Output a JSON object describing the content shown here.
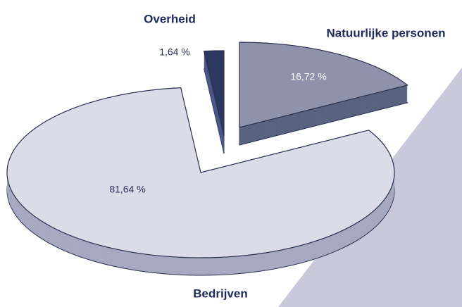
{
  "chart_data": {
    "type": "pie",
    "categories": [
      "Natuurlijke personen",
      "Bedrijven",
      "Overheid"
    ],
    "values": [
      16.72,
      81.64,
      1.64
    ],
    "value_labels": [
      "16,72 %",
      "81,64 %",
      "1,64 %"
    ],
    "colors": [
      "#8e93ab",
      "#dcdce9",
      "#2d3860"
    ]
  }
}
